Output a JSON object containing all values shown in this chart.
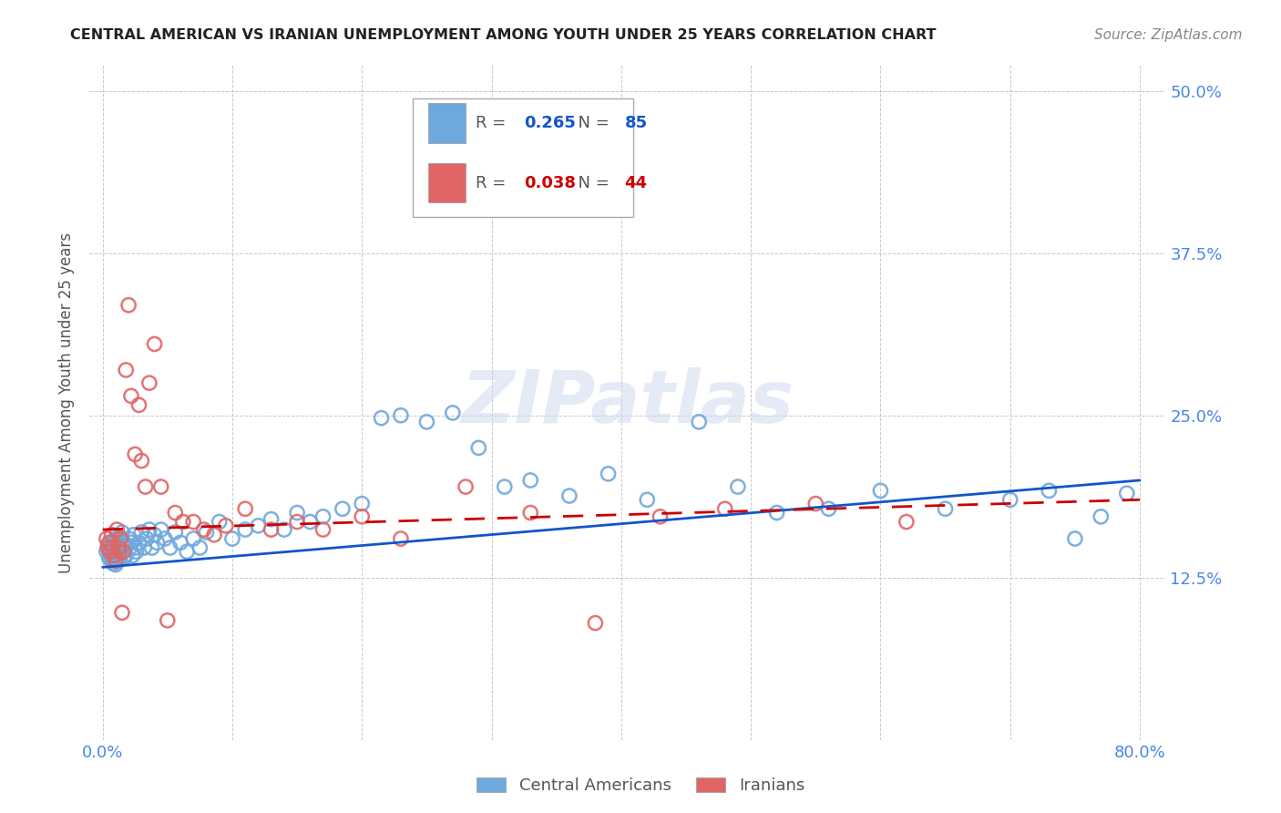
{
  "title": "CENTRAL AMERICAN VS IRANIAN UNEMPLOYMENT AMONG YOUTH UNDER 25 YEARS CORRELATION CHART",
  "source": "Source: ZipAtlas.com",
  "ylabel": "Unemployment Among Youth under 25 years",
  "x_ticks": [
    0.0,
    0.1,
    0.2,
    0.3,
    0.4,
    0.5,
    0.6,
    0.7,
    0.8
  ],
  "y_ticks": [
    0.0,
    0.125,
    0.25,
    0.375,
    0.5
  ],
  "y_tick_labels": [
    "",
    "12.5%",
    "25.0%",
    "37.5%",
    "50.0%"
  ],
  "xlim": [
    -0.01,
    0.82
  ],
  "ylim": [
    0.0,
    0.52
  ],
  "blue_R": "0.265",
  "blue_N": "85",
  "pink_R": "0.038",
  "pink_N": "44",
  "blue_color": "#6fa8dc",
  "pink_color": "#e06666",
  "blue_line_color": "#1155cc",
  "pink_line_color": "#cc0000",
  "tick_color": "#4a86e8",
  "watermark_color": "#cfd9f0",
  "background_color": "#ffffff",
  "blue_line_y_start": 0.133,
  "blue_line_y_end": 0.2,
  "pink_line_y_start": 0.162,
  "pink_line_y_end": 0.185,
  "blue_scatter_x": [
    0.003,
    0.004,
    0.005,
    0.005,
    0.006,
    0.006,
    0.007,
    0.007,
    0.008,
    0.008,
    0.009,
    0.009,
    0.01,
    0.01,
    0.01,
    0.011,
    0.011,
    0.012,
    0.012,
    0.013,
    0.013,
    0.014,
    0.015,
    0.015,
    0.016,
    0.016,
    0.017,
    0.018,
    0.019,
    0.02,
    0.021,
    0.022,
    0.023,
    0.024,
    0.025,
    0.026,
    0.028,
    0.03,
    0.032,
    0.034,
    0.036,
    0.038,
    0.04,
    0.042,
    0.045,
    0.048,
    0.052,
    0.056,
    0.06,
    0.065,
    0.07,
    0.075,
    0.08,
    0.09,
    0.1,
    0.11,
    0.12,
    0.13,
    0.14,
    0.15,
    0.16,
    0.17,
    0.185,
    0.2,
    0.215,
    0.23,
    0.25,
    0.27,
    0.29,
    0.31,
    0.33,
    0.36,
    0.39,
    0.42,
    0.46,
    0.49,
    0.52,
    0.56,
    0.6,
    0.65,
    0.7,
    0.73,
    0.75,
    0.77,
    0.79
  ],
  "blue_scatter_y": [
    0.145,
    0.15,
    0.145,
    0.14,
    0.148,
    0.142,
    0.15,
    0.138,
    0.152,
    0.136,
    0.145,
    0.14,
    0.155,
    0.145,
    0.135,
    0.15,
    0.142,
    0.155,
    0.138,
    0.148,
    0.142,
    0.155,
    0.16,
    0.145,
    0.152,
    0.14,
    0.148,
    0.142,
    0.15,
    0.155,
    0.148,
    0.152,
    0.142,
    0.158,
    0.148,
    0.145,
    0.152,
    0.16,
    0.148,
    0.155,
    0.162,
    0.148,
    0.158,
    0.152,
    0.162,
    0.155,
    0.148,
    0.16,
    0.152,
    0.145,
    0.155,
    0.148,
    0.16,
    0.168,
    0.155,
    0.162,
    0.165,
    0.17,
    0.162,
    0.175,
    0.168,
    0.172,
    0.178,
    0.182,
    0.248,
    0.25,
    0.245,
    0.252,
    0.225,
    0.195,
    0.2,
    0.188,
    0.205,
    0.185,
    0.245,
    0.195,
    0.175,
    0.178,
    0.192,
    0.178,
    0.185,
    0.192,
    0.155,
    0.172,
    0.19
  ],
  "pink_scatter_x": [
    0.003,
    0.004,
    0.005,
    0.006,
    0.007,
    0.008,
    0.009,
    0.01,
    0.011,
    0.012,
    0.013,
    0.014,
    0.015,
    0.016,
    0.018,
    0.02,
    0.022,
    0.025,
    0.028,
    0.03,
    0.033,
    0.036,
    0.04,
    0.045,
    0.05,
    0.056,
    0.062,
    0.07,
    0.078,
    0.086,
    0.095,
    0.11,
    0.13,
    0.15,
    0.17,
    0.2,
    0.23,
    0.28,
    0.33,
    0.38,
    0.43,
    0.48,
    0.55,
    0.62
  ],
  "pink_scatter_y": [
    0.155,
    0.148,
    0.152,
    0.145,
    0.158,
    0.148,
    0.142,
    0.138,
    0.162,
    0.148,
    0.145,
    0.155,
    0.098,
    0.145,
    0.285,
    0.335,
    0.265,
    0.22,
    0.258,
    0.215,
    0.195,
    0.275,
    0.305,
    0.195,
    0.092,
    0.175,
    0.168,
    0.168,
    0.162,
    0.158,
    0.165,
    0.178,
    0.162,
    0.168,
    0.162,
    0.172,
    0.155,
    0.195,
    0.175,
    0.09,
    0.172,
    0.178,
    0.182,
    0.168
  ]
}
